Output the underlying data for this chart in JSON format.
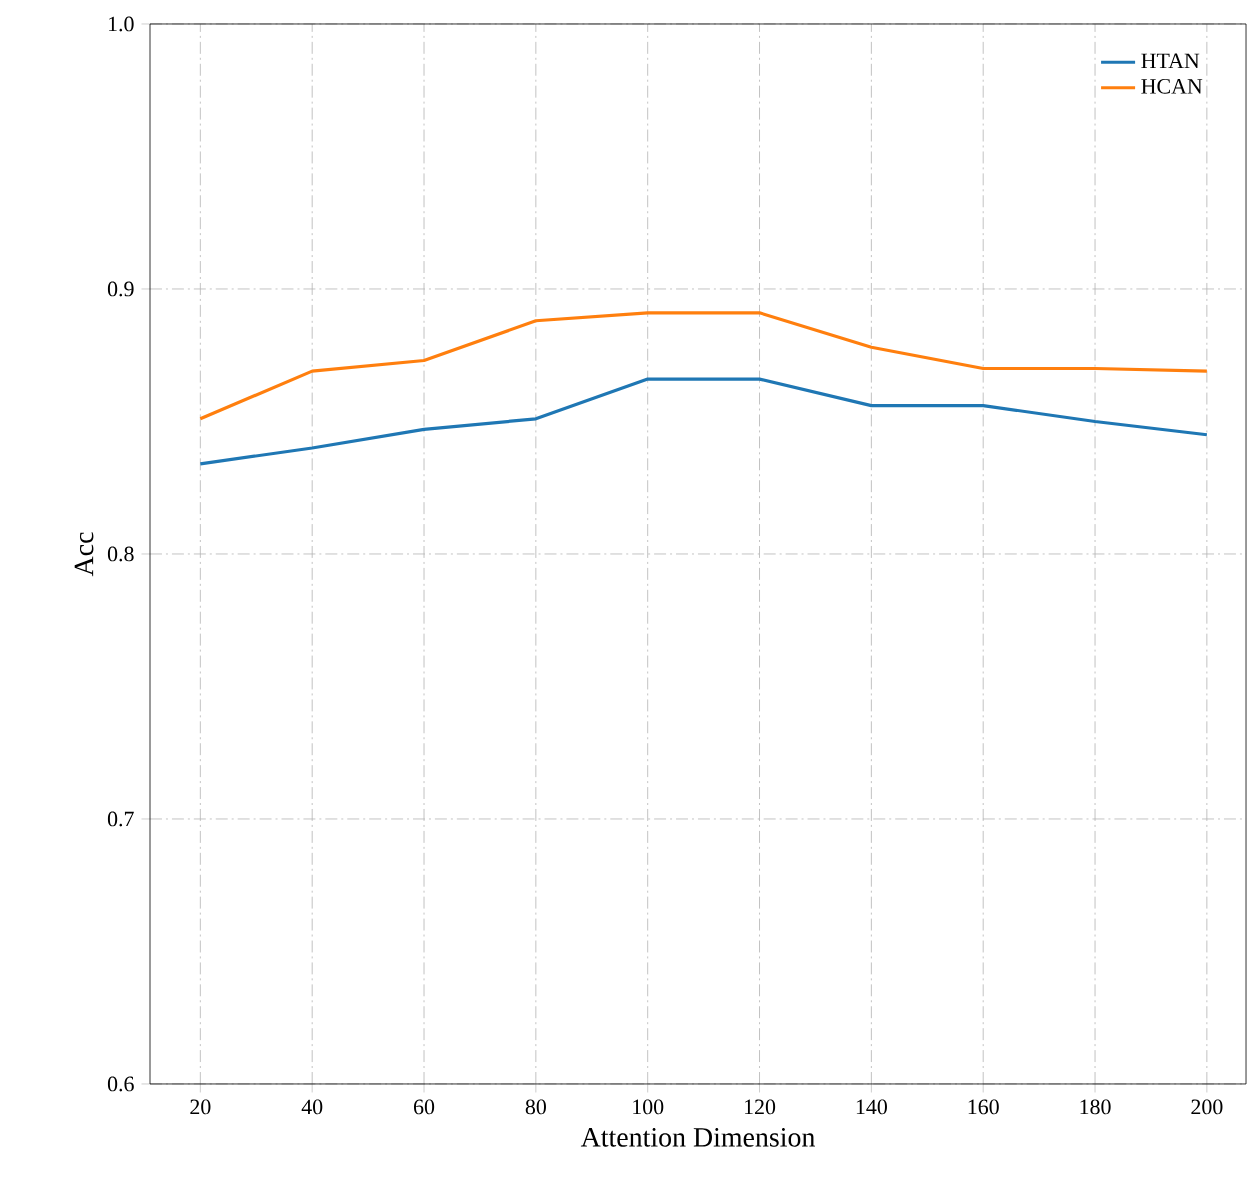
{
  "chart_data": {
    "type": "line",
    "xlabel": "Attention Dimension",
    "ylabel": "Acc",
    "x": [
      20,
      40,
      60,
      80,
      100,
      120,
      140,
      160,
      180,
      200
    ],
    "series": [
      {
        "name": "HTAN",
        "color": "#1f77b4",
        "values": [
          0.834,
          0.84,
          0.847,
          0.851,
          0.866,
          0.866,
          0.856,
          0.856,
          0.85,
          0.845
        ]
      },
      {
        "name": "HCAN",
        "color": "#ff7f0e",
        "values": [
          0.851,
          0.869,
          0.873,
          0.888,
          0.891,
          0.891,
          0.878,
          0.87,
          0.87,
          0.869
        ]
      }
    ],
    "xlim": [
      11,
      207
    ],
    "ylim": [
      0.6,
      1.0
    ],
    "xticks": [
      20,
      40,
      60,
      80,
      100,
      120,
      140,
      160,
      180,
      200
    ],
    "yticks": [
      0.6,
      0.7,
      0.8,
      0.9,
      {
        "value": 1.0,
        "label": "1.0"
      }
    ],
    "grid": true,
    "legend": "top right",
    "marker": "none",
    "line_style": "solid"
  }
}
